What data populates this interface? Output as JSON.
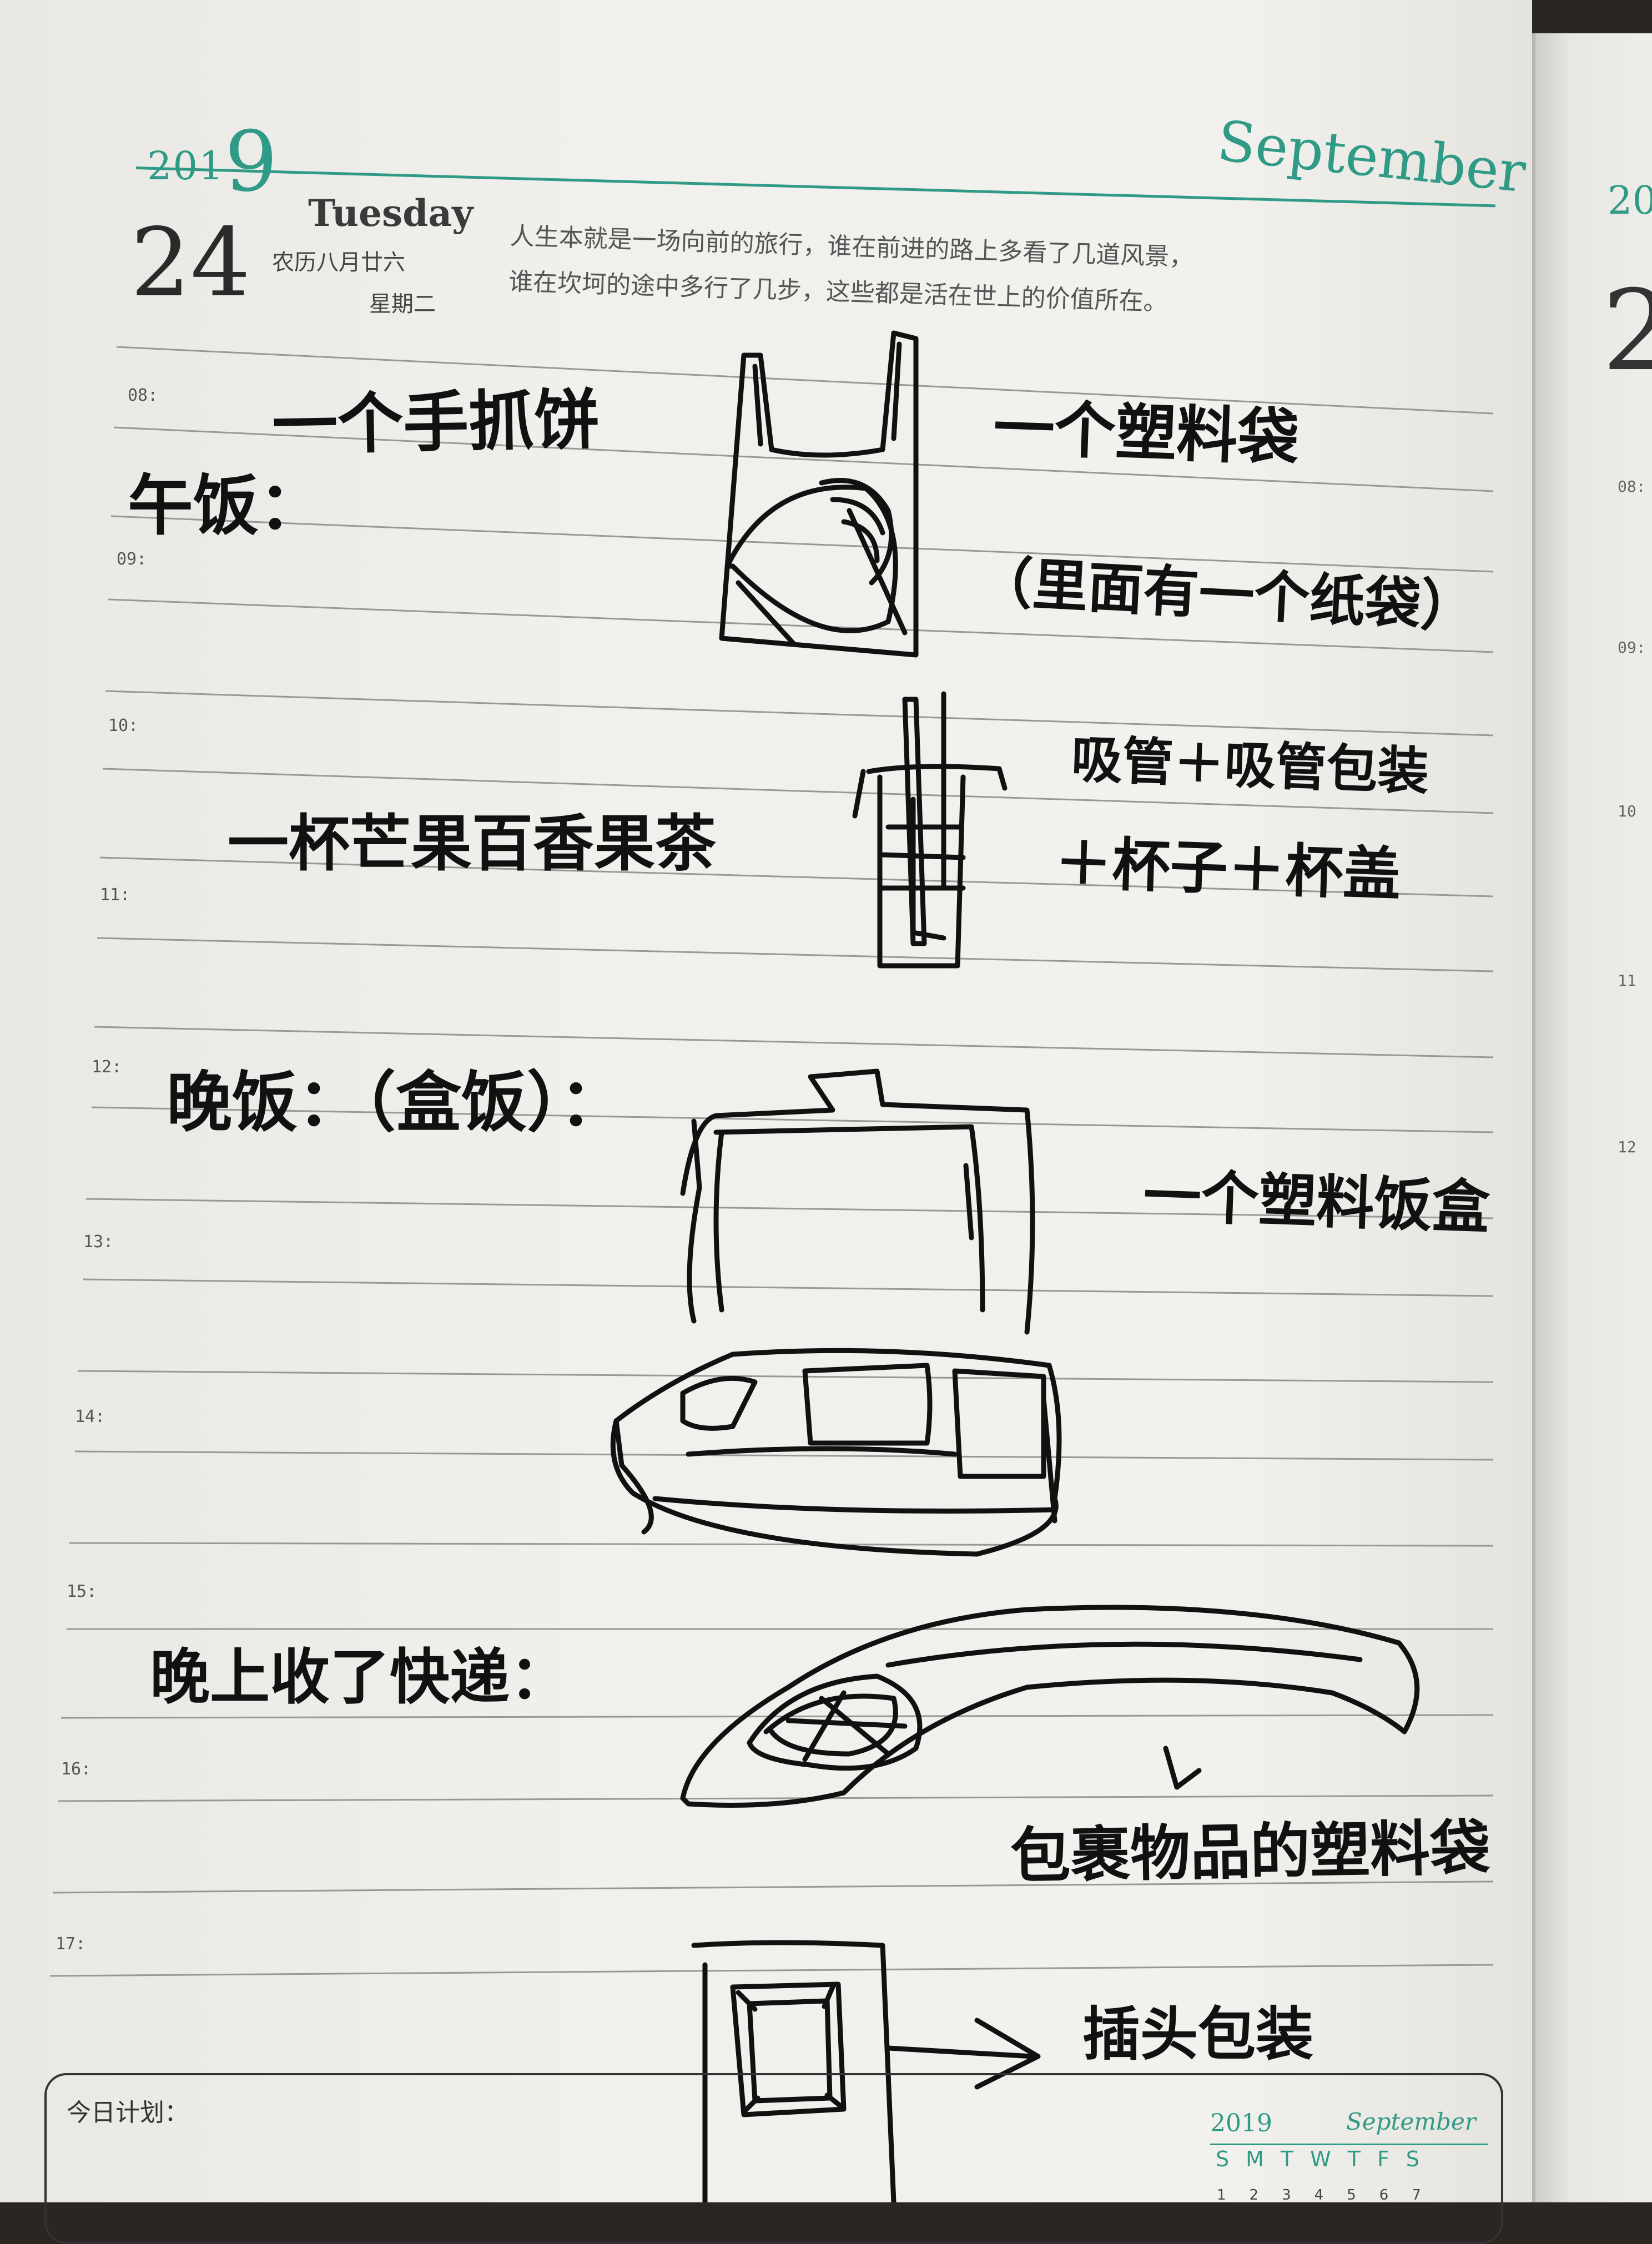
{
  "header": {
    "year_small": "201",
    "year_big": "9",
    "month_name": "September",
    "day_number": "24",
    "weekday_en": "Tuesday",
    "lunar_date": "农历八月廿六",
    "weekday_cn": "星期二",
    "quote_line1": "人生本就是一场向前的旅行，谁在前进的路上多看了几道风景，",
    "quote_line2": "谁在坎坷的途中多行了几步，这些都是活在世上的价值所在。"
  },
  "time_slots": [
    "08:",
    "09:",
    "10:",
    "11:",
    "12:",
    "13:",
    "14:",
    "15:",
    "16:",
    "17:"
  ],
  "handwriting": {
    "item_pancake": "一个手抓饼",
    "label_lunch": "午饭：",
    "item_plastic_bag": "一个塑料袋",
    "item_paper_bag_inside": "（里面有一个纸袋）",
    "item_straw_line1": "吸管＋吸管包装",
    "item_tea": "一杯芒果百香果茶",
    "item_straw_line2": "＋杯子＋杯盖",
    "label_dinner": "晚饭：（盒饭）：",
    "item_lunchbox": "一个塑料饭盒",
    "label_package": "晚上收了快递：",
    "item_package_bag": "包裹物品的塑料袋",
    "item_plug_packaging": "插头包装"
  },
  "plan": {
    "label": "今日计划："
  },
  "mini_calendar": {
    "year": "2019",
    "month": "September",
    "weekdays": [
      "S",
      "M",
      "T",
      "W",
      "T",
      "F",
      "S"
    ],
    "first_row": [
      "1",
      "2",
      "3",
      "4",
      "5",
      "6",
      "7"
    ]
  },
  "next_page": {
    "year_fragment": "20",
    "day_fragment": "2",
    "time_fragments": [
      "08:",
      "09:",
      "10",
      "11",
      "12"
    ]
  },
  "colors": {
    "accent_green": "#2f9a86",
    "ink": "#111111",
    "paper": "#f1f0ec"
  }
}
